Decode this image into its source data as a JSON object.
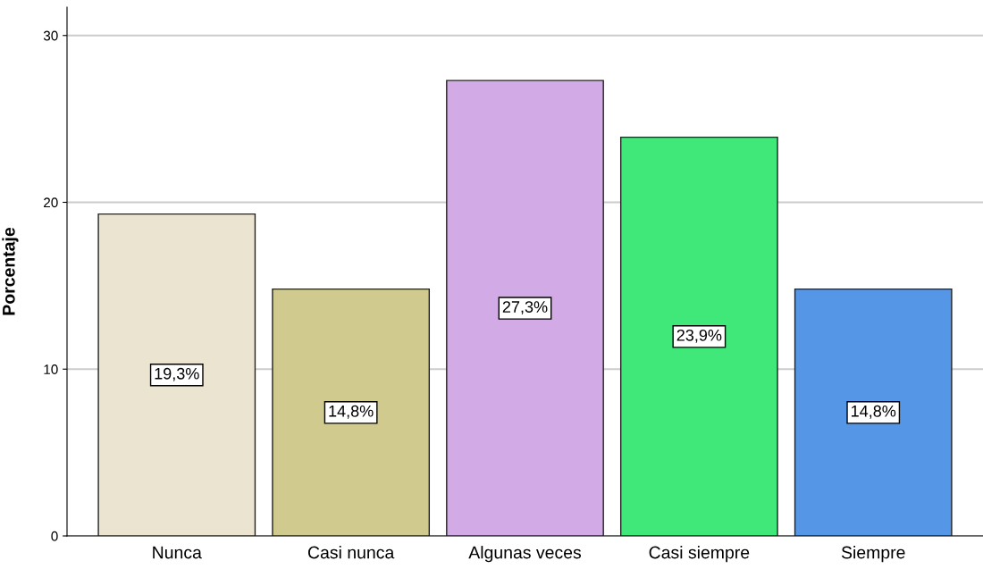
{
  "chart_data": {
    "type": "bar",
    "ylabel": "Porcentaje",
    "categories": [
      "Nunca",
      "Casi nunca",
      "Algunas veces",
      "Casi siempre",
      "Siempre"
    ],
    "values": [
      19.3,
      14.8,
      27.3,
      23.9,
      14.8
    ],
    "value_labels": [
      "19,3%",
      "14,8%",
      "27,3%",
      "23,9%",
      "14,8%"
    ],
    "colors": [
      "#ebe4d0",
      "#d0ca8e",
      "#d2aae6",
      "#40e87a",
      "#5596e6"
    ],
    "ylim": [
      0,
      31.7
    ],
    "yticks": [
      0,
      10,
      20,
      30
    ],
    "grid": "y"
  }
}
